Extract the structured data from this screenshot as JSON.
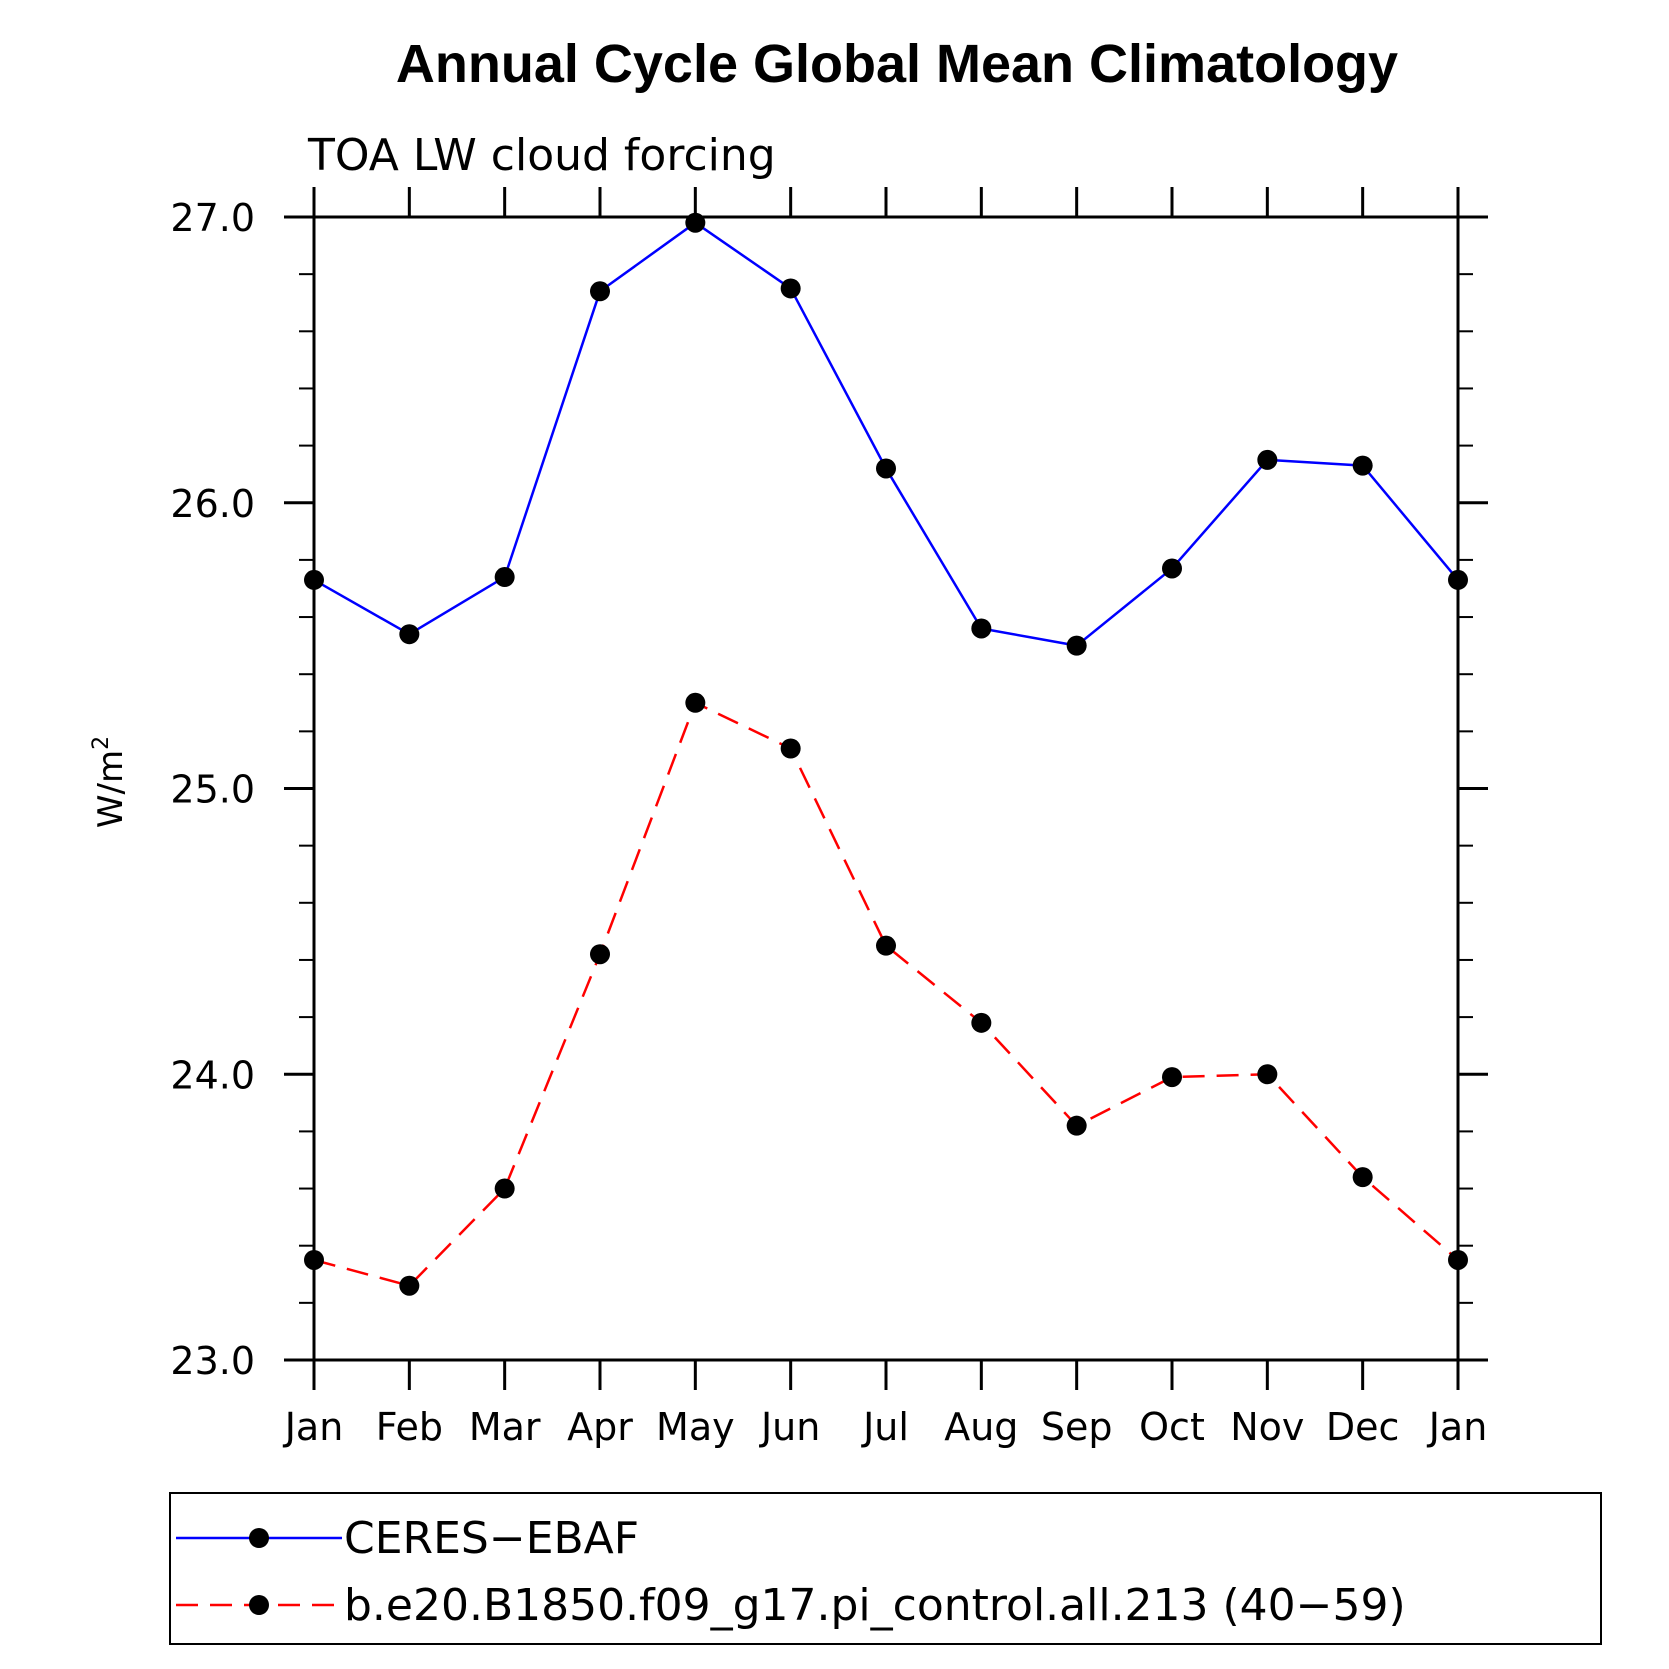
{
  "chart_data": {
    "type": "line",
    "title": "Annual Cycle Global Mean Climatology",
    "subtitle": "TOA LW cloud forcing",
    "ylabel": "W/m",
    "ylabel_sup": "2",
    "xlabel": "",
    "categories": [
      "Jan",
      "Feb",
      "Mar",
      "Apr",
      "May",
      "Jun",
      "Jul",
      "Aug",
      "Sep",
      "Oct",
      "Nov",
      "Dec",
      "Jan"
    ],
    "ylim": [
      23.0,
      27.0
    ],
    "yticks": [
      "23.0",
      "24.0",
      "25.0",
      "26.0",
      "27.0"
    ],
    "grid": false,
    "legend_position": "bottom",
    "series": [
      {
        "name": "CERES−EBAF",
        "color": "#0000ff",
        "line_style": "solid",
        "marker": "filled-circle",
        "values": [
          25.73,
          25.54,
          25.74,
          26.74,
          26.98,
          26.75,
          26.12,
          25.56,
          25.5,
          25.77,
          26.15,
          26.13,
          25.73
        ]
      },
      {
        "name": "b.e20.B1850.f09_g17.pi_control.all.213 (40−59)",
        "color": "#ff0000",
        "line_style": "dashed",
        "marker": "filled-circle",
        "values": [
          23.35,
          23.26,
          23.6,
          24.42,
          25.3,
          25.14,
          24.45,
          24.18,
          23.82,
          23.99,
          24.0,
          23.64,
          23.35
        ]
      }
    ]
  }
}
